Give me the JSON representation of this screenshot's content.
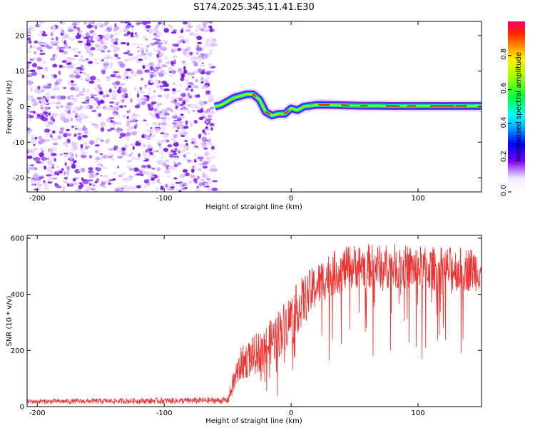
{
  "title": "S174.2025.345.11.41.E30",
  "chart_data": [
    {
      "type": "heatmap",
      "name": "spectrogram",
      "xlabel": "Height of straight line (km)",
      "ylabel": "Frequency (Hz)",
      "xlim": [
        -208,
        150
      ],
      "ylim": [
        -24,
        24
      ],
      "xticks": [
        -200,
        -100,
        0,
        100
      ],
      "yticks": [
        -20,
        -10,
        0,
        10,
        20
      ],
      "noise_region_x": [
        -208,
        -60
      ],
      "ridge": {
        "x": [
          -60,
          -55,
          -50,
          -45,
          -40,
          -35,
          -30,
          -25,
          -20,
          -15,
          -10,
          -5,
          0,
          5,
          10,
          20,
          30,
          50,
          80,
          110,
          150
        ],
        "freq": [
          0,
          0.5,
          1.5,
          2.5,
          3,
          3.5,
          3.5,
          2,
          -1.5,
          -2.5,
          -2,
          -2,
          -0.5,
          -1,
          0,
          0.5,
          0.5,
          0.3,
          0.2,
          0.2,
          0.2
        ]
      },
      "colorbar": {
        "label": "Normalized spectral amplitude",
        "ticks": [
          0.0,
          0.2,
          0.4,
          0.6,
          0.8
        ],
        "range": [
          0,
          1
        ]
      }
    },
    {
      "type": "line",
      "name": "snr",
      "xlabel": "Height of straight line (km)",
      "ylabel": "SNR (10 * v/v)",
      "xlim": [
        -208,
        150
      ],
      "ylim": [
        0,
        610
      ],
      "xticks": [
        -200,
        -100,
        0,
        100
      ],
      "yticks": [
        0,
        200,
        400,
        600
      ],
      "color": "#ee3333",
      "envelope": {
        "x": [
          -208,
          -50,
          -45,
          -40,
          -30,
          -20,
          -10,
          0,
          10,
          20,
          30,
          50,
          80,
          110,
          150
        ],
        "mean": [
          18,
          22,
          90,
          150,
          180,
          210,
          260,
          320,
          380,
          430,
          470,
          500,
          500,
          490,
          490
        ],
        "spread": [
          8,
          12,
          50,
          60,
          70,
          80,
          90,
          90,
          90,
          80,
          80,
          80,
          80,
          80,
          80
        ]
      }
    }
  ]
}
